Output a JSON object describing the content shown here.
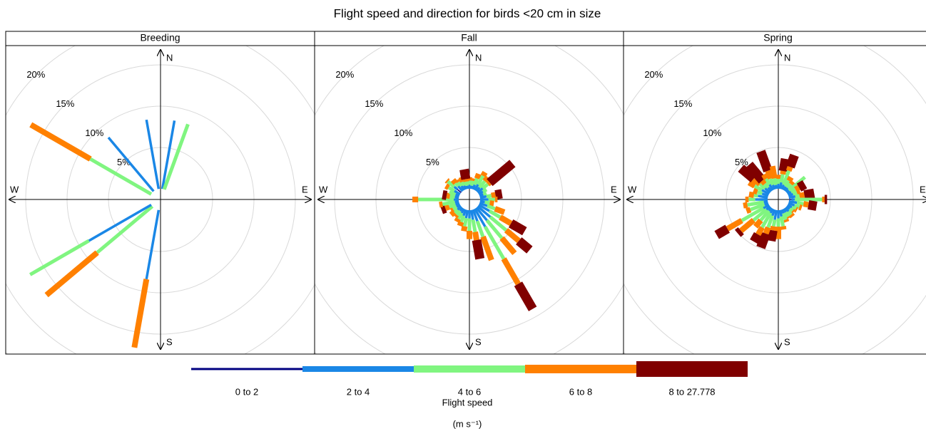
{
  "title": "Flight speed and direction for birds <20 cm in size",
  "legend_title": "Flight speed",
  "legend_unit": "(m s⁻¹)",
  "chart_data": [
    {
      "type": "windrose",
      "title": "Breeding",
      "directions": [
        0,
        10,
        20,
        30,
        40,
        50,
        60,
        70,
        80,
        90,
        100,
        110,
        120,
        130,
        140,
        150,
        160,
        170,
        180,
        190,
        200,
        210,
        220,
        230,
        240,
        250,
        260,
        270,
        280,
        290,
        300,
        310,
        320,
        330,
        340,
        350
      ],
      "direction_labels": [
        "N",
        "E",
        "S",
        "W"
      ],
      "ylim": [
        0,
        25
      ],
      "yticks": [
        {
          "value": 5,
          "label": "5%"
        },
        {
          "value": 10,
          "label": "10%"
        },
        {
          "value": 15,
          "label": "15%"
        },
        {
          "value": 20,
          "label": "20%"
        }
      ],
      "series": [
        {
          "name": "0 to 2",
          "color": "#000080",
          "values": [
            0,
            0,
            0,
            0,
            0,
            0,
            0,
            0,
            0,
            0,
            0,
            0,
            0,
            0,
            0,
            0,
            0,
            0,
            0,
            0,
            0,
            0,
            0,
            0,
            0,
            0,
            0,
            0,
            0,
            0,
            0,
            0,
            0,
            0,
            0,
            0
          ]
        },
        {
          "name": "2 to 4",
          "color": "#1a87e6",
          "values": [
            0,
            8.4,
            0,
            0,
            0,
            0,
            0,
            0,
            0,
            0,
            0,
            0,
            0,
            0,
            0,
            0,
            0,
            0,
            0,
            8.5,
            0,
            0,
            0,
            0,
            8.7,
            0,
            0,
            0,
            0,
            0,
            0,
            0,
            8.5,
            0,
            0,
            8.5
          ]
        },
        {
          "name": "4 to 6",
          "color": "#80f580",
          "values": [
            0,
            0,
            8.4,
            0,
            0,
            0,
            0,
            0,
            0,
            0,
            0,
            0,
            0,
            0,
            0,
            0,
            0,
            0,
            0,
            0,
            0,
            0,
            0,
            8.7,
            8.2,
            0,
            0,
            0,
            0,
            0,
            8.5,
            0,
            0,
            0,
            0,
            0
          ]
        },
        {
          "name": "6 to 8",
          "color": "#ff8000",
          "values": [
            0,
            0,
            0,
            0,
            0,
            0,
            0,
            0,
            0,
            0,
            0,
            0,
            0,
            0,
            0,
            0,
            0,
            0,
            0,
            8.4,
            0,
            0,
            0,
            8.0,
            0,
            0,
            0,
            0,
            0,
            0,
            8.3,
            0,
            0,
            0,
            0,
            0
          ]
        },
        {
          "name": "8 to 27.778",
          "color": "#800000",
          "values": [
            0,
            0,
            0,
            0,
            0,
            0,
            0,
            0,
            0,
            0,
            0,
            0,
            0,
            0,
            0,
            0,
            0,
            0,
            0,
            0,
            0,
            0,
            0,
            0,
            0,
            0,
            0,
            0,
            0,
            0,
            0,
            0,
            0,
            0,
            0,
            0
          ]
        }
      ]
    },
    {
      "type": "windrose",
      "title": "Fall",
      "directions": [
        0,
        10,
        20,
        30,
        40,
        50,
        60,
        70,
        80,
        90,
        100,
        110,
        120,
        130,
        140,
        150,
        160,
        170,
        180,
        190,
        200,
        210,
        220,
        230,
        240,
        250,
        260,
        270,
        280,
        290,
        300,
        310,
        320,
        330,
        340,
        350
      ],
      "direction_labels": [
        "N",
        "E",
        "S",
        "W"
      ],
      "ylim": [
        0,
        25
      ],
      "yticks": [
        {
          "value": 5,
          "label": "5%"
        },
        {
          "value": 10,
          "label": "10%"
        },
        {
          "value": 15,
          "label": "15%"
        },
        {
          "value": 20,
          "label": "20%"
        }
      ],
      "series": [
        {
          "name": "0 to 2",
          "color": "#000080",
          "values": [
            0,
            0,
            0,
            0,
            0,
            0,
            0,
            0,
            0,
            0,
            0,
            0,
            0,
            0,
            0,
            0,
            0,
            0,
            0,
            0,
            0,
            0,
            0,
            0,
            0,
            0,
            0,
            0,
            0,
            0,
            0,
            0.6,
            0,
            0,
            0,
            0
          ]
        },
        {
          "name": "2 to 4",
          "color": "#1a87e6",
          "values": [
            0.5,
            0.4,
            0.6,
            0.8,
            0.6,
            0.8,
            0.6,
            0.5,
            0.8,
            1.0,
            0.6,
            1.0,
            1.5,
            2.0,
            2.0,
            2.5,
            1.5,
            1.2,
            1.0,
            1.0,
            0.8,
            0.6,
            0.5,
            0.6,
            0.5,
            0.5,
            0.5,
            0.6,
            0.5,
            0.5,
            0.8,
            0.5,
            0.8,
            0.6,
            0.5,
            0.4
          ]
        },
        {
          "name": "4 to 6",
          "color": "#80f580",
          "values": [
            0.5,
            0.6,
            0.8,
            1.2,
            1.0,
            0.8,
            0.5,
            0.4,
            0.6,
            0.8,
            0.6,
            1.0,
            1.5,
            2.5,
            2.8,
            4.5,
            2.0,
            1.5,
            1.5,
            1.0,
            0.8,
            0.8,
            0.6,
            0.5,
            0.5,
            0.8,
            1.5,
            4.3,
            0.6,
            0.8,
            0.8,
            1.0,
            0.5,
            0.6,
            0.5,
            0.5
          ]
        },
        {
          "name": "6 to 8",
          "color": "#ff8000",
          "values": [
            0.4,
            0.3,
            0.6,
            0.5,
            0.6,
            0.3,
            0,
            0,
            0.5,
            0.3,
            0.5,
            1.2,
            1.5,
            2.0,
            2.4,
            3.5,
            3.0,
            1.0,
            1.0,
            0.6,
            0.5,
            0.4,
            0.3,
            0.5,
            0.3,
            0.5,
            0.4,
            0.7,
            0.4,
            0,
            0.4,
            0.2,
            0.5,
            0.3,
            0.6,
            0.3
          ]
        },
        {
          "name": "8 to 27.778",
          "color": "#800000",
          "values": [
            0,
            0,
            0,
            0,
            0,
            3.6,
            0,
            0,
            0.8,
            0,
            0,
            0,
            1.9,
            1.7,
            0,
            3.5,
            0,
            2.3,
            0,
            0,
            0,
            0,
            0,
            0,
            0,
            0.5,
            0,
            0,
            0.5,
            0,
            0,
            0,
            0,
            0,
            0,
            1.2
          ]
        }
      ]
    },
    {
      "type": "windrose",
      "title": "Spring",
      "directions": [
        0,
        10,
        20,
        30,
        40,
        50,
        60,
        70,
        80,
        90,
        100,
        110,
        120,
        130,
        140,
        150,
        160,
        170,
        180,
        190,
        200,
        210,
        220,
        230,
        240,
        250,
        260,
        270,
        280,
        290,
        300,
        310,
        320,
        330,
        340,
        350
      ],
      "direction_labels": [
        "N",
        "E",
        "S",
        "W"
      ],
      "ylim": [
        0,
        25
      ],
      "yticks": [
        {
          "value": 5,
          "label": "5%"
        },
        {
          "value": 10,
          "label": "10%"
        },
        {
          "value": 15,
          "label": "15%"
        },
        {
          "value": 20,
          "label": "20%"
        }
      ],
      "series": [
        {
          "name": "0 to 2",
          "color": "#000080",
          "values": [
            0,
            0,
            0,
            0,
            0,
            0,
            0,
            0,
            0,
            0.3,
            0,
            0,
            0,
            0,
            0,
            0,
            0,
            0,
            0,
            0,
            0,
            0,
            0,
            0,
            0,
            0,
            0,
            0,
            0,
            0,
            0,
            0,
            0,
            0,
            0,
            0
          ]
        },
        {
          "name": "2 to 4",
          "color": "#1a87e6",
          "values": [
            0.6,
            0.8,
            0.6,
            0.5,
            0.5,
            0.4,
            0.5,
            0.6,
            0.8,
            0.4,
            1.0,
            0.8,
            0.6,
            0.5,
            0.6,
            0.5,
            0.5,
            0.8,
            1.0,
            1.2,
            0.8,
            0.6,
            0.5,
            0.6,
            0.8,
            0.5,
            0.5,
            1.5,
            1.2,
            0.8,
            1.0,
            0.8,
            0.6,
            0.8,
            0.6,
            0.5
          ]
        },
        {
          "name": "4 to 6",
          "color": "#80f580",
          "values": [
            0.6,
            1.0,
            1.8,
            0.8,
            0.6,
            2.5,
            0.6,
            0.5,
            0.5,
            3.3,
            0.8,
            0.6,
            0.5,
            0.4,
            0.5,
            0.6,
            0.8,
            1.2,
            1.0,
            0.8,
            1.5,
            2.0,
            1.5,
            2.0,
            3.0,
            1.8,
            2.0,
            0.8,
            0.5,
            0.6,
            1.0,
            0.8,
            0.6,
            0.8,
            0.8,
            0.8
          ]
        },
        {
          "name": "6 to 8",
          "color": "#ff8000",
          "values": [
            0.5,
            0.4,
            0.5,
            0.5,
            0.4,
            0,
            0.5,
            0.4,
            0.6,
            0.3,
            0.6,
            0.3,
            0.2,
            0.2,
            0.3,
            0.2,
            0.3,
            0.4,
            1.5,
            0.5,
            0.8,
            1.0,
            1.0,
            2.0,
            2.0,
            0.5,
            0.5,
            0.4,
            0.6,
            0.5,
            0.8,
            1.0,
            0.5,
            0.6,
            1.0,
            1.5
          ]
        },
        {
          "name": "8 to 27.778",
          "color": "#800000",
          "values": [
            0,
            1.5,
            1.5,
            0,
            0,
            0,
            0.8,
            0,
            1.2,
            0.3,
            1.0,
            0,
            0,
            0,
            0,
            0,
            0,
            0,
            0,
            1.3,
            1.8,
            1.0,
            0,
            0.5,
            1.5,
            0,
            0,
            0,
            0,
            0,
            0,
            2.0,
            2.5,
            0,
            2.5,
            0
          ]
        }
      ]
    }
  ]
}
